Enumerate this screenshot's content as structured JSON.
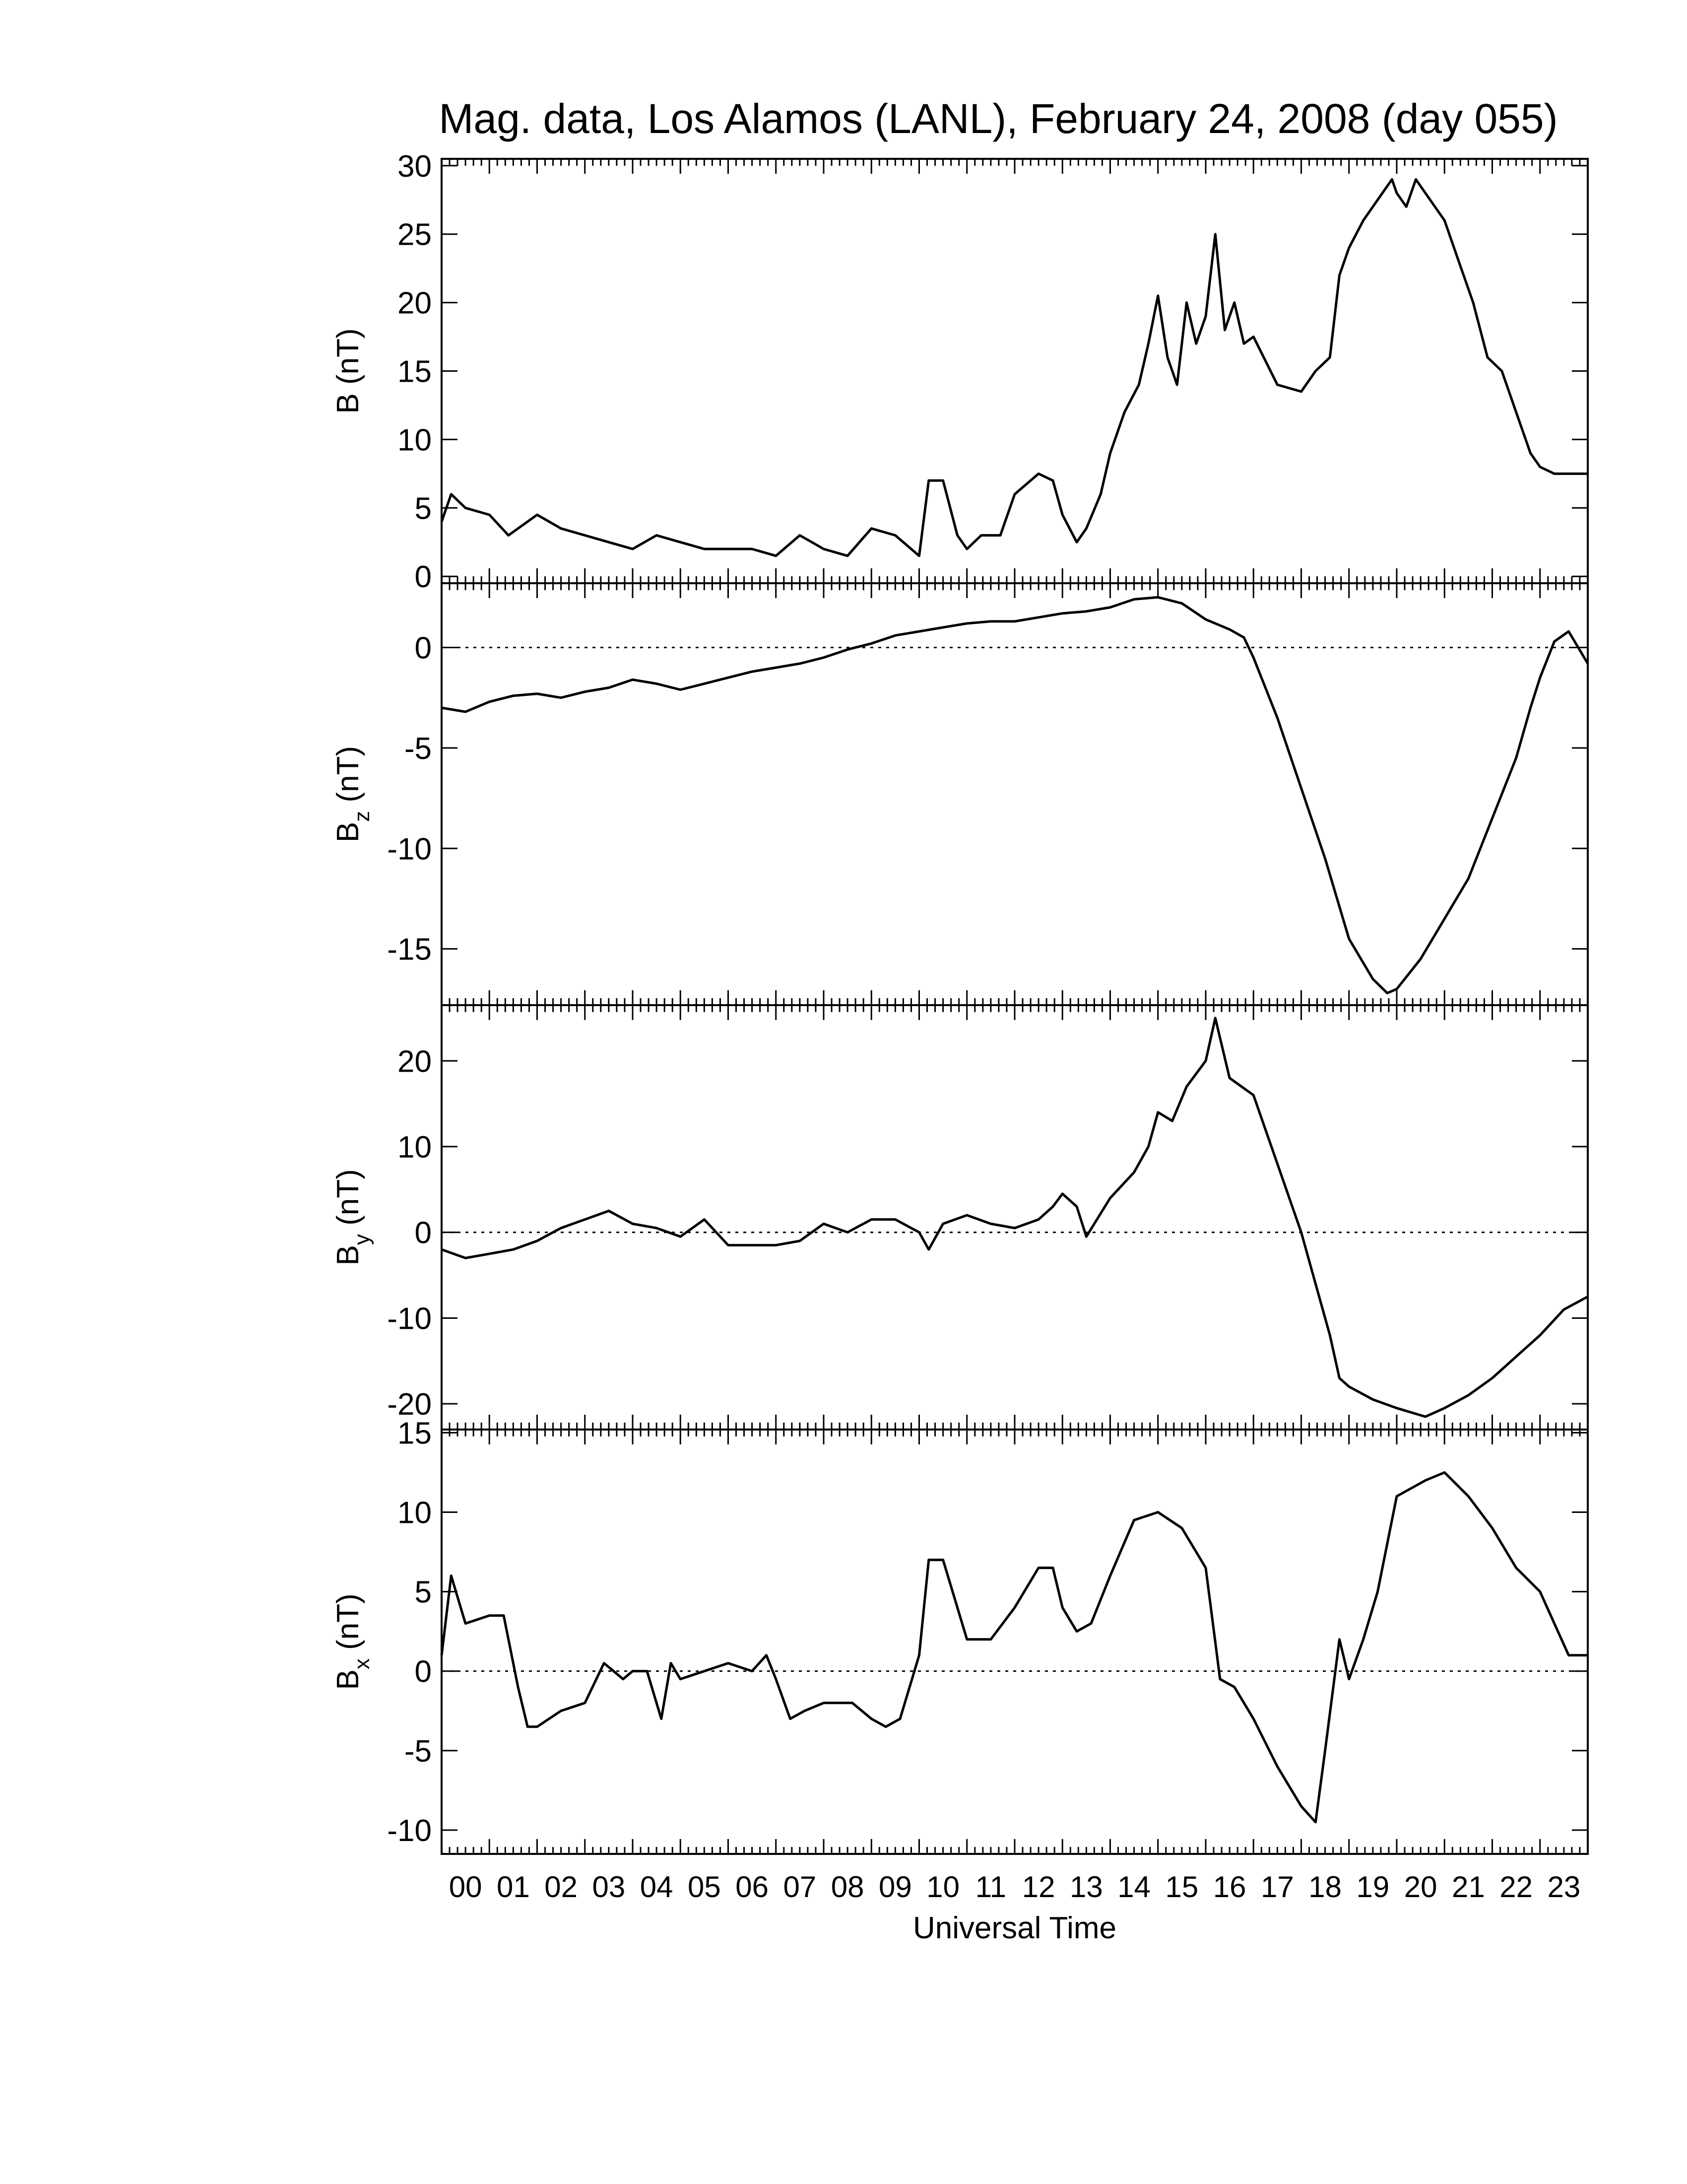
{
  "title": "Mag. data, Los Alamos (LANL), February 24, 2008 (day 055)",
  "colors": {
    "line": "#000000",
    "background": "#ffffff"
  },
  "chart_data": {
    "type": "line",
    "title": "Mag. data, Los Alamos (LANL), February 24, 2008 (day 055)",
    "xlabel": "Universal Time",
    "xlim": [
      0,
      24
    ],
    "x_tick_labels": [
      "00",
      "01",
      "02",
      "03",
      "04",
      "05",
      "06",
      "07",
      "08",
      "09",
      "10",
      "11",
      "12",
      "13",
      "14",
      "15",
      "16",
      "17",
      "18",
      "19",
      "20",
      "21",
      "22",
      "23"
    ],
    "grid": false,
    "panels": [
      {
        "key": "B",
        "ylabel_main": "B",
        "ylabel_sub": "",
        "ylabel_unit": "(nT)",
        "ylim": [
          -0.5,
          30.5
        ],
        "yticks": [
          0,
          5,
          10,
          15,
          20,
          25,
          30
        ],
        "ytick_labels": [
          "0",
          "5",
          "10",
          "15",
          "20",
          "25",
          "30"
        ],
        "zero_line": false,
        "x": [
          0,
          0.2,
          0.5,
          1.0,
          1.4,
          1.8,
          2.0,
          2.5,
          3.0,
          3.5,
          4.0,
          4.5,
          5.0,
          5.5,
          6.0,
          6.5,
          7.0,
          7.5,
          8.0,
          8.5,
          9.0,
          9.5,
          10.0,
          10.2,
          10.5,
          10.8,
          11.0,
          11.3,
          11.7,
          12.0,
          12.5,
          12.8,
          13.0,
          13.3,
          13.5,
          13.8,
          14.0,
          14.3,
          14.6,
          14.8,
          15.0,
          15.2,
          15.4,
          15.6,
          15.8,
          16.0,
          16.2,
          16.4,
          16.6,
          16.8,
          17.0,
          17.5,
          18.0,
          18.3,
          18.6,
          18.8,
          19.0,
          19.3,
          19.6,
          19.9,
          20.0,
          20.2,
          20.4,
          20.6,
          20.8,
          21.0,
          21.3,
          21.6,
          21.9,
          22.2,
          22.5,
          22.8,
          23.0,
          23.3,
          23.6,
          24.0
        ],
        "y": [
          4,
          6,
          5,
          4.5,
          3,
          4,
          4.5,
          3.5,
          3,
          2.5,
          2,
          3,
          2.5,
          2,
          2,
          2,
          1.5,
          3,
          2,
          1.5,
          3.5,
          3,
          1.5,
          7,
          7,
          3,
          2,
          3,
          3,
          6,
          7.5,
          7,
          4.5,
          2.5,
          3.5,
          6,
          9,
          12,
          14,
          17,
          20.5,
          16,
          14,
          20,
          17,
          19,
          25,
          18,
          20,
          17,
          17.5,
          14,
          13.5,
          15,
          16,
          22,
          24,
          26,
          27.5,
          29,
          28,
          27,
          29,
          28,
          27,
          26,
          23,
          20,
          16,
          15,
          12,
          9,
          8,
          7.5,
          7.5,
          7.5
        ]
      },
      {
        "key": "Bz",
        "ylabel_main": "B",
        "ylabel_sub": "z",
        "ylabel_unit": "(nT)",
        "ylim": [
          -17.8,
          3.2
        ],
        "yticks": [
          0,
          -5,
          -10,
          -15
        ],
        "ytick_labels": [
          "0",
          "-5",
          "-10",
          "-15"
        ],
        "zero_line": true,
        "x": [
          0,
          0.5,
          1.0,
          1.5,
          2.0,
          2.5,
          3.0,
          3.5,
          4.0,
          4.5,
          5.0,
          5.5,
          6.0,
          6.5,
          7.0,
          7.5,
          8.0,
          8.5,
          9.0,
          9.5,
          10.0,
          10.5,
          11.0,
          11.5,
          12.0,
          12.5,
          13.0,
          13.5,
          14.0,
          14.5,
          15.0,
          15.5,
          16.0,
          16.5,
          16.8,
          17.0,
          17.5,
          18.0,
          18.5,
          19.0,
          19.5,
          19.8,
          20.0,
          20.5,
          21.0,
          21.5,
          22.0,
          22.5,
          22.8,
          23.0,
          23.3,
          23.6,
          24.0
        ],
        "y": [
          -3,
          -3.2,
          -2.7,
          -2.4,
          -2.3,
          -2.5,
          -2.2,
          -2.0,
          -1.6,
          -1.8,
          -2.1,
          -1.8,
          -1.5,
          -1.2,
          -1.0,
          -0.8,
          -0.5,
          -0.1,
          0.2,
          0.6,
          0.8,
          1.0,
          1.2,
          1.3,
          1.3,
          1.5,
          1.7,
          1.8,
          2.0,
          2.4,
          2.5,
          2.2,
          1.4,
          0.9,
          0.5,
          -0.5,
          -3.5,
          -7.0,
          -10.5,
          -14.5,
          -16.5,
          -17.2,
          -17.0,
          -15.5,
          -13.5,
          -11.5,
          -8.5,
          -5.5,
          -3.0,
          -1.5,
          0.3,
          0.8,
          -0.8
        ]
      },
      {
        "key": "By",
        "ylabel_main": "B",
        "ylabel_sub": "y",
        "ylabel_unit": "(nT)",
        "ylim": [
          -23,
          26.5
        ],
        "yticks": [
          20,
          10,
          0,
          -10,
          -20
        ],
        "ytick_labels": [
          "20",
          "10",
          "0",
          "-10",
          "-20"
        ],
        "zero_line": true,
        "x": [
          0,
          0.5,
          1.0,
          1.5,
          2.0,
          2.5,
          3.0,
          3.5,
          4.0,
          4.5,
          5.0,
          5.5,
          6.0,
          6.5,
          7.0,
          7.5,
          8.0,
          8.5,
          9.0,
          9.5,
          10.0,
          10.2,
          10.5,
          11.0,
          11.5,
          12.0,
          12.5,
          12.8,
          13.0,
          13.3,
          13.5,
          14.0,
          14.5,
          14.8,
          15.0,
          15.3,
          15.6,
          16.0,
          16.2,
          16.5,
          17.0,
          17.5,
          18.0,
          18.3,
          18.6,
          18.8,
          19.0,
          19.5,
          20.0,
          20.3,
          20.6,
          21.0,
          21.5,
          22.0,
          22.5,
          23.0,
          23.5,
          24.0
        ],
        "y": [
          -2,
          -3,
          -2.5,
          -2,
          -1,
          0.5,
          1.5,
          2.5,
          1,
          0.5,
          -0.5,
          1.5,
          -1.5,
          -1.5,
          -1.5,
          -1,
          1,
          0,
          1.5,
          1.5,
          0,
          -2,
          1,
          2,
          1,
          0.5,
          1.5,
          3,
          4.5,
          3,
          -0.5,
          4,
          7,
          10,
          14,
          13,
          17,
          20,
          25,
          18,
          16,
          8,
          0,
          -6,
          -12,
          -17,
          -18,
          -19.5,
          -20.5,
          -21,
          -21.5,
          -20.5,
          -19,
          -17,
          -14.5,
          -12,
          -9,
          -7.5
        ]
      },
      {
        "key": "Bx",
        "ylabel_main": "B",
        "ylabel_sub": "x",
        "ylabel_unit": "(nT)",
        "ylim": [
          -11.5,
          15.2
        ],
        "yticks": [
          15,
          10,
          5,
          0,
          -5,
          -10
        ],
        "ytick_labels": [
          "15",
          "10",
          "5",
          "0",
          "-5",
          "-10"
        ],
        "zero_line": true,
        "x": [
          0,
          0.2,
          0.5,
          1.0,
          1.3,
          1.6,
          1.8,
          2.0,
          2.5,
          3.0,
          3.4,
          3.8,
          4.0,
          4.3,
          4.6,
          4.8,
          5.0,
          5.5,
          6.0,
          6.5,
          6.8,
          7.0,
          7.3,
          7.6,
          8.0,
          8.3,
          8.6,
          9.0,
          9.3,
          9.6,
          10.0,
          10.2,
          10.5,
          11.0,
          11.5,
          12.0,
          12.5,
          12.8,
          13.0,
          13.3,
          13.6,
          14.0,
          14.5,
          15.0,
          15.5,
          16.0,
          16.3,
          16.6,
          17.0,
          17.5,
          18.0,
          18.3,
          18.5,
          18.8,
          19.0,
          19.3,
          19.6,
          20.0,
          20.3,
          20.6,
          21.0,
          21.5,
          22.0,
          22.5,
          23.0,
          23.3,
          23.6,
          24.0
        ],
        "y": [
          1,
          6,
          3,
          3.5,
          3.5,
          -1,
          -3.5,
          -3.5,
          -2.5,
          -2,
          0.5,
          -0.5,
          0,
          0,
          -3,
          0.5,
          -0.5,
          0,
          0.5,
          0,
          1,
          -0.5,
          -3,
          -2.5,
          -2,
          -2,
          -2,
          -3,
          -3.5,
          -3,
          1,
          7,
          7,
          2,
          2,
          4,
          6.5,
          6.5,
          4,
          2.5,
          3,
          6,
          9.5,
          10,
          9,
          6.5,
          -0.5,
          -1,
          -3,
          -6,
          -8.5,
          -9.5,
          -5,
          2,
          -0.5,
          2,
          5,
          11,
          11.5,
          12,
          12.5,
          11,
          9,
          6.5,
          5,
          3,
          1,
          1
        ]
      }
    ]
  }
}
